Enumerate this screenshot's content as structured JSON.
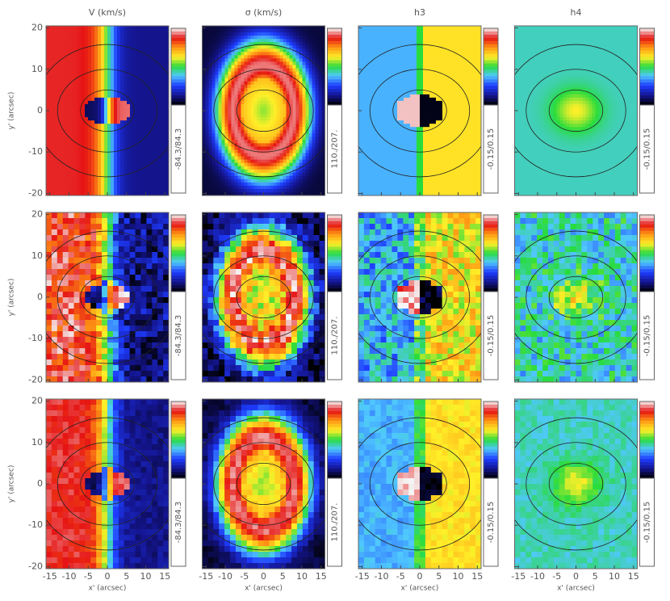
{
  "figure": {
    "columns": [
      {
        "title": "V (km/s)",
        "range_label": "-84.3/84.3"
      },
      {
        "title": "σ (km/s)",
        "range_label": "110./207."
      },
      {
        "title": "h3",
        "range_label": "-0.15/0.15"
      },
      {
        "title": "h4",
        "range_label": "-0.15/0.15"
      }
    ],
    "xlabel": "x' (arcsec)",
    "ylabel": "y' (arcsec)",
    "xlim": [
      -16,
      16
    ],
    "ylim": [
      -20.5,
      20.5
    ],
    "xticks": [
      -15,
      -10,
      -5,
      0,
      5,
      10,
      15
    ],
    "yticks": [
      20,
      10,
      0,
      -10,
      -20
    ]
  }
}
